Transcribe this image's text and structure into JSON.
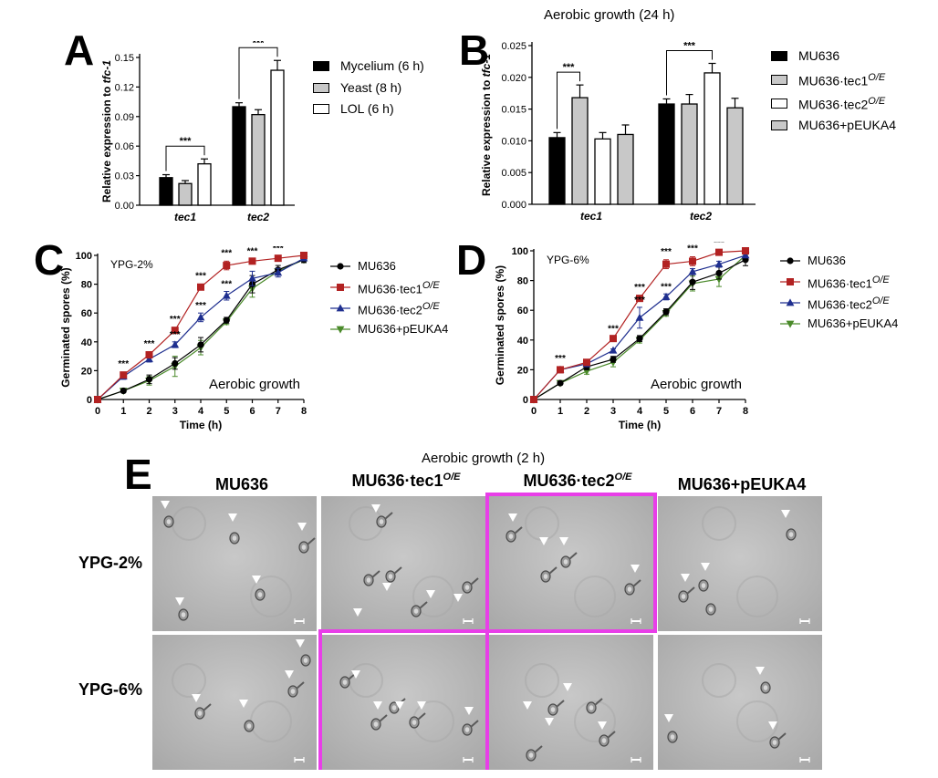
{
  "panels": {
    "A": "A",
    "B": "B",
    "C": "C",
    "D": "D",
    "E": "E"
  },
  "chart_data": [
    {
      "id": "A",
      "type": "bar",
      "title": "",
      "xlabel": "",
      "ylabel": "Relative expression to tfc-1",
      "ylim": [
        0,
        0.15
      ],
      "yticks": [
        "0.00",
        "0.03",
        "0.06",
        "0.09",
        "0.12",
        "0.15"
      ],
      "categories": [
        "tec1",
        "tec2"
      ],
      "legend_position": "right",
      "series": [
        {
          "name": "Mycelium (6 h)",
          "color": "#000000",
          "values": [
            0.028,
            0.1
          ],
          "errors": [
            0.003,
            0.004
          ]
        },
        {
          "name": "Yeast (8 h)",
          "color": "#c8c8c8",
          "values": [
            0.022,
            0.092
          ],
          "errors": [
            0.003,
            0.005
          ]
        },
        {
          "name": "LOL (6 h)",
          "color": "#ffffff",
          "values": [
            0.042,
            0.137
          ],
          "errors": [
            0.005,
            0.01
          ]
        }
      ],
      "significance": [
        {
          "label": "***",
          "category": 0,
          "from_series": 0,
          "to_series": 2
        },
        {
          "label": "***",
          "category": 1,
          "from_series": 0,
          "to_series": 2
        }
      ]
    },
    {
      "id": "B",
      "type": "bar",
      "title": "Aerobic growth (24 h)",
      "xlabel": "",
      "ylabel": "Relative expression to tfc-1",
      "ylim": [
        0,
        0.025
      ],
      "yticks": [
        "0.000",
        "0.005",
        "0.010",
        "0.015",
        "0.020",
        "0.025"
      ],
      "categories": [
        "tec1",
        "tec2"
      ],
      "legend_position": "right",
      "series": [
        {
          "name": "MU636",
          "color": "#000000",
          "values": [
            0.0105,
            0.0158
          ],
          "errors": [
            0.0008,
            0.0008
          ]
        },
        {
          "name": "MU636·tec1",
          "sup": "O/E",
          "color": "#c8c8c8",
          "values": [
            0.0168,
            0.0158
          ],
          "errors": [
            0.002,
            0.0015
          ]
        },
        {
          "name": "MU636·tec2",
          "sup": "O/E",
          "color": "#ffffff",
          "values": [
            0.0103,
            0.0207
          ],
          "errors": [
            0.001,
            0.0015
          ]
        },
        {
          "name": "MU636+pEUKA4",
          "color": "#c8c8c8",
          "values": [
            0.011,
            0.0152
          ],
          "errors": [
            0.0015,
            0.0015
          ]
        }
      ],
      "significance": [
        {
          "label": "***",
          "category": 0,
          "from_series": 0,
          "to_series": 1
        },
        {
          "label": "***",
          "category": 1,
          "from_series": 0,
          "to_series": 2
        }
      ]
    },
    {
      "id": "C",
      "type": "line",
      "title": "",
      "annotation_topleft": "YPG-2%",
      "annotation_bottomright": "Aerobic growth",
      "xlabel": "Time (h)",
      "ylabel": "Germinated spores (%)",
      "xlim": [
        0,
        8
      ],
      "ylim": [
        0,
        100
      ],
      "x": [
        0,
        1,
        2,
        3,
        4,
        5,
        6,
        7,
        8
      ],
      "yticks": [
        "0",
        "20",
        "40",
        "60",
        "80",
        "100"
      ],
      "legend_position": "right",
      "series": [
        {
          "name": "MU636",
          "color": "#000000",
          "marker": "circle",
          "values": [
            0,
            6,
            14,
            25,
            38,
            55,
            80,
            90,
            97
          ],
          "errors": [
            0,
            1,
            3,
            4,
            5,
            2,
            6,
            3,
            2
          ]
        },
        {
          "name": "MU636·tec1",
          "sup": "O/E",
          "color": "#b22222",
          "marker": "square",
          "values": [
            0,
            17,
            31,
            48,
            78,
            93,
            96,
            98,
            100
          ],
          "errors": [
            0,
            2,
            2,
            2,
            2,
            3,
            1,
            1,
            0
          ]
        },
        {
          "name": "MU636·tec2",
          "sup": "O/E",
          "color": "#1f2f8f",
          "marker": "triangle-up",
          "values": [
            0,
            16,
            28,
            38,
            57,
            72,
            84,
            88,
            98
          ],
          "errors": [
            0,
            2,
            2,
            2,
            3,
            3,
            5,
            3,
            1
          ]
        },
        {
          "name": "MU636+pEUKA4",
          "color": "#4a8a2a",
          "marker": "triangle-down",
          "values": [
            0,
            6,
            13,
            23,
            36,
            54,
            77,
            89,
            97
          ],
          "errors": [
            0,
            1,
            3,
            7,
            5,
            2,
            6,
            2,
            2
          ]
        }
      ],
      "significance_labels": [
        {
          "x": 1,
          "labels": [
            "***"
          ]
        },
        {
          "x": 2,
          "labels": [
            "***"
          ]
        },
        {
          "x": 3,
          "labels": [
            "***",
            "***"
          ]
        },
        {
          "x": 4,
          "labels": [
            "***",
            "***"
          ]
        },
        {
          "x": 5,
          "labels": [
            "***",
            "***"
          ]
        },
        {
          "x": 6,
          "labels": [
            "***"
          ]
        },
        {
          "x": 7,
          "labels": [
            "***"
          ]
        }
      ]
    },
    {
      "id": "D",
      "type": "line",
      "title": "",
      "annotation_topleft": "YPG-6%",
      "annotation_bottomright": "Aerobic growth",
      "xlabel": "Time (h)",
      "ylabel": "Germinated spores (%)",
      "xlim": [
        0,
        8
      ],
      "ylim": [
        0,
        100
      ],
      "x": [
        0,
        1,
        2,
        3,
        4,
        5,
        6,
        7,
        8
      ],
      "yticks": [
        "0",
        "20",
        "40",
        "60",
        "80",
        "100"
      ],
      "legend_position": "right",
      "series": [
        {
          "name": "MU636",
          "color": "#000000",
          "marker": "circle",
          "values": [
            0,
            11,
            22,
            27,
            41,
            59,
            79,
            85,
            94
          ],
          "errors": [
            0,
            1,
            2,
            2,
            2,
            2,
            5,
            4,
            4
          ]
        },
        {
          "name": "MU636·tec1",
          "sup": "O/E",
          "color": "#b22222",
          "marker": "square",
          "values": [
            0,
            20,
            25,
            41,
            68,
            91,
            93,
            99,
            100
          ],
          "errors": [
            0,
            2,
            1,
            1,
            2,
            3,
            3,
            1,
            0
          ]
        },
        {
          "name": "MU636·tec2",
          "sup": "O/E",
          "color": "#1f2f8f",
          "marker": "triangle-up",
          "values": [
            0,
            20,
            24,
            33,
            55,
            69,
            86,
            91,
            97
          ],
          "errors": [
            0,
            2,
            2,
            1,
            7,
            2,
            2,
            2,
            1
          ]
        },
        {
          "name": "MU636+pEUKA4",
          "color": "#4a8a2a",
          "marker": "triangle-down",
          "values": [
            0,
            11,
            19,
            25,
            40,
            58,
            78,
            81,
            97
          ],
          "errors": [
            0,
            1,
            2,
            3,
            2,
            2,
            5,
            5,
            2
          ]
        }
      ],
      "significance_labels": [
        {
          "x": 1,
          "labels": [
            "***"
          ]
        },
        {
          "x": 3,
          "labels": [
            "***"
          ]
        },
        {
          "x": 4,
          "labels": [
            "***",
            "***"
          ]
        },
        {
          "x": 5,
          "labels": [
            "***",
            "***"
          ]
        },
        {
          "x": 6,
          "labels": [
            "***"
          ]
        },
        {
          "x": 7,
          "labels": [
            "***"
          ]
        }
      ]
    }
  ],
  "micrographs": {
    "title": "Aerobic growth (2 h)",
    "columns": [
      {
        "name": "MU636",
        "sup": ""
      },
      {
        "name": "MU636·tec1",
        "sup": "O/E"
      },
      {
        "name": "MU636·tec2",
        "sup": "O/E"
      },
      {
        "name": "MU636+pEUKA4",
        "sup": ""
      }
    ],
    "rows": [
      "YPG-2%",
      "YPG-6%"
    ],
    "highlight_color": "#e83ee8"
  }
}
